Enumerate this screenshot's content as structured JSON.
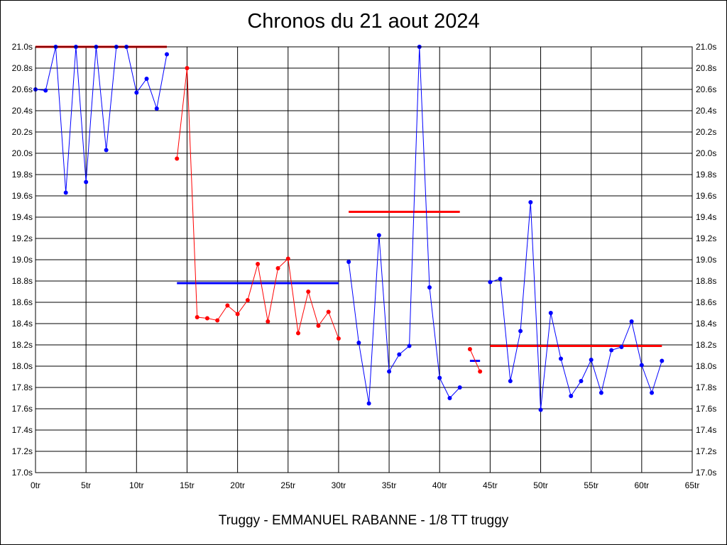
{
  "chart_data": {
    "type": "line",
    "title": "Chronos du 21 aout 2024",
    "subtitle": "Truggy - EMMANUEL RABANNE - 1/8 TT truggy",
    "xlabel": "",
    "ylabel": "",
    "xlim": [
      0,
      65
    ],
    "ylim": [
      17.0,
      21.0
    ],
    "x_ticks": [
      0,
      5,
      10,
      15,
      20,
      25,
      30,
      35,
      40,
      45,
      50,
      55,
      60,
      65
    ],
    "x_tick_labels": [
      "0tr",
      "5tr",
      "10tr",
      "15tr",
      "20tr",
      "25tr",
      "30tr",
      "35tr",
      "40tr",
      "45tr",
      "50tr",
      "55tr",
      "60tr",
      "65tr"
    ],
    "y_ticks": [
      17.0,
      17.2,
      17.4,
      17.6,
      17.8,
      18.0,
      18.2,
      18.4,
      18.6,
      18.8,
      19.0,
      19.2,
      19.4,
      19.6,
      19.8,
      20.0,
      20.2,
      20.4,
      20.6,
      20.8,
      21.0
    ],
    "y_tick_labels": [
      "17.0s",
      "17.2s",
      "17.4s",
      "17.6s",
      "17.8s",
      "18.0s",
      "18.2s",
      "18.4s",
      "18.6s",
      "18.8s",
      "19.0s",
      "19.2s",
      "19.4s",
      "19.6s",
      "19.8s",
      "20.0s",
      "20.2s",
      "20.4s",
      "20.6s",
      "20.8s",
      "21.0s"
    ],
    "y_labels_both_sides": true,
    "grid": true,
    "colors": {
      "blue": "#0000ff",
      "red": "#ff0000",
      "grid": "#000000"
    },
    "series": [
      {
        "color": "#0000ff",
        "x": [
          0,
          1,
          2,
          3,
          4,
          5,
          6,
          7,
          8,
          9,
          10,
          11,
          12,
          13
        ],
        "y": [
          20.6,
          20.59,
          21.0,
          19.63,
          21.0,
          19.73,
          21.0,
          20.03,
          21.0,
          21.0,
          20.57,
          20.7,
          20.42,
          20.93
        ]
      },
      {
        "color": "#ff0000",
        "x": [
          14,
          15,
          16,
          17,
          18,
          19,
          20,
          21,
          22,
          23,
          24,
          25,
          26,
          27,
          28,
          29,
          30
        ],
        "y": [
          19.95,
          20.8,
          18.46,
          18.45,
          18.43,
          18.57,
          18.49,
          18.62,
          18.96,
          18.42,
          18.92,
          19.01,
          18.31,
          18.7,
          18.38,
          18.51,
          18.26
        ]
      },
      {
        "color": "#0000ff",
        "x": [
          31,
          32,
          33,
          34,
          35,
          36,
          37,
          38,
          39,
          40,
          41,
          42
        ],
        "y": [
          18.98,
          18.22,
          17.65,
          19.23,
          17.95,
          18.11,
          18.19,
          21.0,
          18.74,
          17.89,
          17.7,
          17.8
        ]
      },
      {
        "color": "#ff0000",
        "x": [
          43,
          44
        ],
        "y": [
          18.16,
          17.95
        ]
      },
      {
        "color": "#0000ff",
        "x": [
          45,
          46,
          47,
          48,
          49,
          50,
          51,
          52,
          53,
          54,
          55,
          56,
          57,
          58,
          59,
          60,
          61,
          62
        ],
        "y": [
          18.79,
          18.82,
          17.86,
          18.33,
          19.54,
          17.59,
          18.5,
          18.07,
          17.72,
          17.86,
          18.06,
          17.75,
          18.15,
          18.18,
          18.42,
          18.01,
          17.75,
          18.05
        ]
      }
    ],
    "average_lines": [
      {
        "color": "#ff0000",
        "x": [
          0,
          13
        ],
        "y": 21.0
      },
      {
        "color": "#0000ff",
        "x": [
          14,
          30
        ],
        "y": 18.78
      },
      {
        "color": "#ff0000",
        "x": [
          31,
          42
        ],
        "y": 19.45
      },
      {
        "color": "#0000ff",
        "x": [
          43,
          44
        ],
        "y": 18.05
      },
      {
        "color": "#ff0000",
        "x": [
          45,
          62
        ],
        "y": 18.19
      }
    ]
  }
}
